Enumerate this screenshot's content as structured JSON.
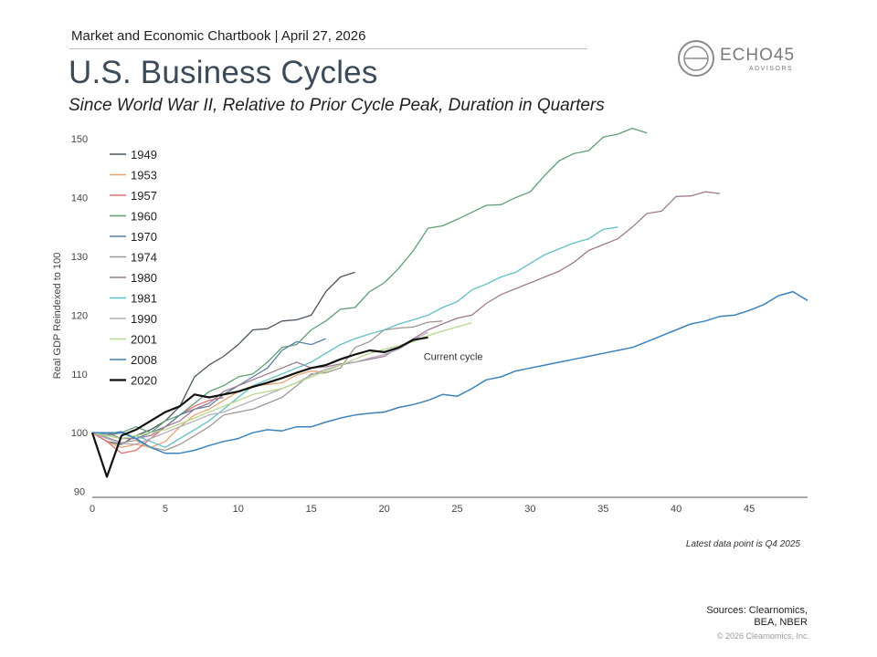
{
  "header": {
    "chartbook_label": "Market and Economic Chartbook | April 27, 2026",
    "title": "U.S. Business Cycles",
    "subtitle": "Since World War II, Relative to Prior Cycle Peak, Duration in Quarters"
  },
  "logo": {
    "name": "ECHO45",
    "sub": "ADVISORS",
    "color": "#7a7a7a"
  },
  "footer": {
    "latest_data_note": "Latest data point is Q4 2025",
    "sources_line1": "Sources: Clearnomics,",
    "sources_line2": "BEA, NBER",
    "copyright": "© 2026 Clearnomics, Inc."
  },
  "chart_data": {
    "type": "line",
    "title": "U.S. Business Cycles",
    "xlabel": "",
    "ylabel": "Real GDP Reindexed to 100",
    "xlim": [
      0,
      49
    ],
    "ylim": [
      89,
      155
    ],
    "x_ticks": [
      0,
      5,
      10,
      15,
      20,
      25,
      30,
      35,
      40,
      45
    ],
    "y_ticks": [
      90,
      100,
      110,
      120,
      130,
      140,
      150
    ],
    "grid": false,
    "legend_position": "top-left",
    "annotation": {
      "text": "Current cycle",
      "x": 22.7,
      "y": 113.0
    },
    "series": [
      {
        "name": "1949",
        "color": "#4a5562",
        "width": 1.3,
        "values": [
          100,
          98.5,
          98,
          99.5,
          100.5,
          102,
          104.5,
          109.5,
          111.5,
          113,
          115,
          117.5,
          117.7,
          119,
          119.2,
          120,
          124,
          126.5,
          127.3
        ]
      },
      {
        "name": "1953",
        "color": "#e6a36e",
        "width": 1.3,
        "values": [
          100,
          98.5,
          97.5,
          98,
          97.5,
          98.5,
          101,
          103,
          104,
          105.5,
          107,
          108,
          108.2,
          108.5,
          109.8,
          110.5,
          110.3
        ]
      },
      {
        "name": "1957",
        "color": "#e07070",
        "width": 1.3,
        "values": [
          100,
          98.5,
          96.5,
          97,
          99,
          101,
          103,
          104.5,
          105.5,
          106
        ]
      },
      {
        "name": "1960",
        "color": "#5f9e72",
        "width": 1.3,
        "values": [
          100,
          99.5,
          100,
          101,
          100,
          102,
          103,
          105,
          107,
          108,
          109.5,
          110,
          112,
          114.5,
          115,
          117.5,
          119,
          121,
          121.3,
          124,
          125.5,
          128,
          131,
          134.8,
          135.2,
          136.3,
          137.5,
          138.7,
          138.8,
          140,
          141,
          143.8,
          146.3,
          147.5,
          148,
          150.3,
          150.8,
          151.8,
          151
        ]
      },
      {
        "name": "1970",
        "color": "#5d7fa3",
        "width": 1.3,
        "values": [
          100,
          99.7,
          100.2,
          99,
          100,
          101,
          103,
          104,
          104.5,
          106.5,
          108,
          109.5,
          111,
          114,
          115.5,
          115,
          116
        ]
      },
      {
        "name": "1974",
        "color": "#a09890",
        "width": 1.3,
        "values": [
          100,
          99.2,
          98.3,
          98.7,
          97.5,
          97,
          98,
          99.5,
          101,
          103,
          103.5,
          104,
          105,
          106,
          108,
          110,
          110.2,
          111,
          114.5,
          115.5,
          117.5,
          117.8,
          118,
          118.8,
          119
        ]
      },
      {
        "name": "1980",
        "color": "#9e7b91",
        "width": 1.3,
        "values": [
          100,
          100,
          99,
          99,
          99.5,
          101,
          102,
          104,
          105,
          107,
          108,
          109,
          110,
          111,
          112,
          111,
          111.2,
          111.7,
          112,
          112.5,
          113,
          114.5,
          116,
          117.5,
          118.5,
          119.5,
          120,
          122,
          123.5,
          124.5,
          125.5,
          126.5,
          127.5,
          129,
          131,
          132,
          133,
          135,
          137.3,
          137.7,
          140.2,
          140.3,
          141,
          140.7
        ]
      },
      {
        "name": "1981",
        "color": "#5fbfc5",
        "width": 1.3,
        "values": [
          100,
          99.5,
          99,
          99.5,
          98.5,
          97.5,
          99,
          100.5,
          102,
          104,
          106,
          108,
          109,
          110,
          111,
          112,
          113.5,
          115,
          116,
          116.8,
          117.5,
          118.5,
          119.2,
          120,
          121.3,
          122.3,
          124.3,
          125.3,
          126.5,
          127.3,
          128.8,
          130.3,
          131.3,
          132.3,
          133,
          134.6,
          135
        ]
      },
      {
        "name": "1990",
        "color": "#b1abb9",
        "width": 1.3,
        "values": [
          100,
          99,
          98.2,
          98,
          99,
          100,
          101,
          102,
          103,
          103.5,
          104.5,
          105.5,
          106.5,
          107.5,
          108.5,
          109.8,
          110.8,
          111.5,
          112,
          112.7,
          113.3,
          114.2,
          115.8,
          117.1
        ]
      },
      {
        "name": "2001",
        "color": "#b9d88b",
        "width": 1.3,
        "values": [
          100,
          99.5,
          99,
          99.5,
          100,
          100.5,
          101.5,
          102.5,
          103.5,
          104.5,
          105.5,
          106.5,
          107,
          107.5,
          108.5,
          109.5,
          110.5,
          111.5,
          112.5,
          113.5,
          114.2,
          114.8,
          115.5,
          116.5,
          117.3,
          118,
          118.7
        ]
      },
      {
        "name": "2008",
        "color": "#3a83bd",
        "width": 1.5,
        "values": [
          100,
          100,
          100,
          99,
          97.5,
          96.5,
          96.5,
          97,
          97.8,
          98.5,
          99,
          100,
          100.5,
          100.3,
          101,
          101,
          101.8,
          102.5,
          103,
          103.3,
          103.5,
          104.3,
          104.8,
          105.5,
          106.5,
          106.2,
          107.5,
          109,
          109.5,
          110.5,
          111,
          111.5,
          112,
          112.5,
          113,
          113.5,
          114,
          114.5,
          115.5,
          116.5,
          117.5,
          118.5,
          119,
          119.8,
          120,
          120.8,
          121.8,
          123.3,
          124,
          122.5
        ]
      },
      {
        "name": "2020",
        "color": "#111111",
        "width": 2.2,
        "values": [
          100,
          92.5,
          99.5,
          100.5,
          102,
          103.5,
          104.5,
          106.5,
          106,
          106.5,
          107,
          107.8,
          108.5,
          109.3,
          110.2,
          111,
          111.5,
          112.5,
          113.3,
          114,
          113.7,
          114.5,
          115.8,
          116.2
        ]
      }
    ]
  }
}
